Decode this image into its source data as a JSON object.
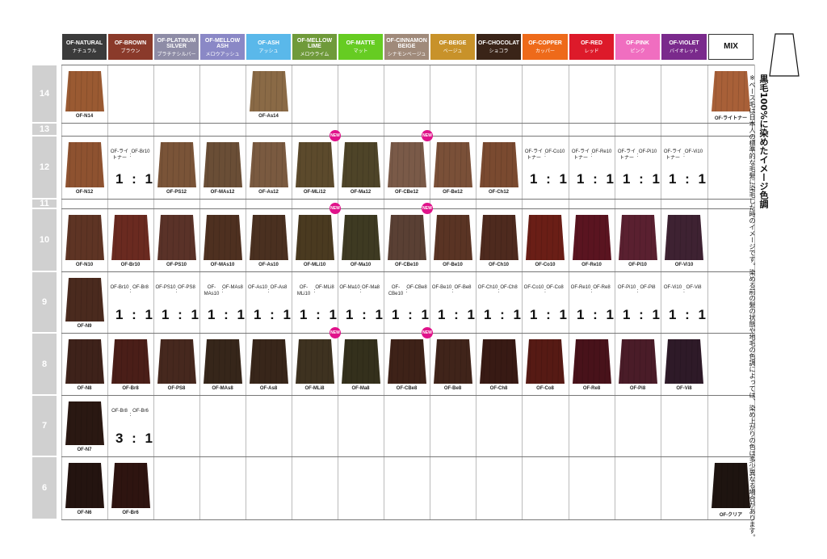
{
  "columns": [
    {
      "en": "OF-NATURAL",
      "jp": "ナチュラル",
      "color": "#3b3b3b"
    },
    {
      "en": "OF-BROWN",
      "jp": "ブラウン",
      "color": "#8a3a2a"
    },
    {
      "en": "OF-PLATINUM SILVER",
      "jp": "プラチナシルバー",
      "color": "#8e8ca6"
    },
    {
      "en": "OF-MELLOW ASH",
      "jp": "メロウアッシュ",
      "color": "#8a88c6"
    },
    {
      "en": "OF-ASH",
      "jp": "アッシュ",
      "color": "#5ab8ea"
    },
    {
      "en": "OF-MELLOW LIME",
      "jp": "メロウライム",
      "color": "#6f9a3a"
    },
    {
      "en": "OF-MATTE",
      "jp": "マット",
      "color": "#66cc22"
    },
    {
      "en": "OF-CINNAMON BEIGE",
      "jp": "シナモンベージュ",
      "color": "#a08a7a"
    },
    {
      "en": "OF-BEIGE",
      "jp": "ベージュ",
      "color": "#c8922a"
    },
    {
      "en": "OF-CHOCOLAT",
      "jp": "ショコラ",
      "color": "#3a2418"
    },
    {
      "en": "OF-COPPER",
      "jp": "カッパー",
      "color": "#ee6a1a"
    },
    {
      "en": "OF-RED",
      "jp": "レッド",
      "color": "#dd1a2a"
    },
    {
      "en": "OF-PINK",
      "jp": "ピンク",
      "color": "#f06ec0"
    },
    {
      "en": "OF-VIOLET",
      "jp": "バイオレット",
      "color": "#7a2a8c"
    },
    {
      "en": "MIX",
      "jp": "",
      "color": "#ffffff"
    }
  ],
  "levels": [
    "14",
    "13",
    "12",
    "11",
    "10",
    "9",
    "8",
    "7",
    "6"
  ],
  "new_badge": "NEW",
  "swatches": [
    {
      "row": 0,
      "col": 0,
      "name": "OF-N14",
      "color": "#9a5a32"
    },
    {
      "row": 0,
      "col": 4,
      "name": "OF-As14",
      "color": "#8a6a46"
    },
    {
      "row": 0,
      "col": 14,
      "name": "OF-ライトナー",
      "color": "#a86038"
    },
    {
      "row": 2,
      "col": 0,
      "name": "OF-N12",
      "color": "#8e5230"
    },
    {
      "row": 2,
      "col": 2,
      "name": "OF-PS12",
      "color": "#7a5438"
    },
    {
      "row": 2,
      "col": 3,
      "name": "OF-MAs12",
      "color": "#6a4e36"
    },
    {
      "row": 2,
      "col": 4,
      "name": "OF-As12",
      "color": "#7a5a40"
    },
    {
      "row": 2,
      "col": 5,
      "name": "OF-MLi12",
      "color": "#5c4a2c",
      "new": true
    },
    {
      "row": 2,
      "col": 6,
      "name": "OF-Ma12",
      "color": "#4e4428"
    },
    {
      "row": 2,
      "col": 7,
      "name": "OF-CBe12",
      "color": "#7a5a48",
      "new": true
    },
    {
      "row": 2,
      "col": 8,
      "name": "OF-Be12",
      "color": "#7a5038"
    },
    {
      "row": 2,
      "col": 9,
      "name": "OF-Ch12",
      "color": "#7a4a30"
    },
    {
      "row": 4,
      "col": 0,
      "name": "OF-N10",
      "color": "#5e3424"
    },
    {
      "row": 4,
      "col": 1,
      "name": "OF-Br10",
      "color": "#6a2a20"
    },
    {
      "row": 4,
      "col": 2,
      "name": "OF-PS10",
      "color": "#5a3228"
    },
    {
      "row": 4,
      "col": 3,
      "name": "OF-MAs10",
      "color": "#4e3020"
    },
    {
      "row": 4,
      "col": 4,
      "name": "OF-As10",
      "color": "#4a3020"
    },
    {
      "row": 4,
      "col": 5,
      "name": "OF-MLi10",
      "color": "#4a3a20",
      "new": true
    },
    {
      "row": 4,
      "col": 6,
      "name": "OF-Ma10",
      "color": "#3e3a22"
    },
    {
      "row": 4,
      "col": 7,
      "name": "OF-CBe10",
      "color": "#5a4034",
      "new": true
    },
    {
      "row": 4,
      "col": 8,
      "name": "OF-Be10",
      "color": "#5a3424"
    },
    {
      "row": 4,
      "col": 9,
      "name": "OF-Ch10",
      "color": "#4e2a1e"
    },
    {
      "row": 4,
      "col": 10,
      "name": "OF-Co10",
      "color": "#6a1e16"
    },
    {
      "row": 4,
      "col": 11,
      "name": "OF-Re10",
      "color": "#5a1420"
    },
    {
      "row": 4,
      "col": 12,
      "name": "OF-Pi10",
      "color": "#5a2030"
    },
    {
      "row": 4,
      "col": 13,
      "name": "OF-Vi10",
      "color": "#3e2232"
    },
    {
      "row": 5,
      "col": 0,
      "name": "OF-N9",
      "color": "#4a2a1e"
    },
    {
      "row": 6,
      "col": 0,
      "name": "OF-N8",
      "color": "#3e221a"
    },
    {
      "row": 6,
      "col": 1,
      "name": "OF-Br8",
      "color": "#4a1e18"
    },
    {
      "row": 6,
      "col": 2,
      "name": "OF-PS8",
      "color": "#46281e"
    },
    {
      "row": 6,
      "col": 3,
      "name": "OF-MAs8",
      "color": "#36261a"
    },
    {
      "row": 6,
      "col": 4,
      "name": "OF-As8",
      "color": "#38261a"
    },
    {
      "row": 6,
      "col": 5,
      "name": "OF-MLi8",
      "color": "#3e3220",
      "new": true
    },
    {
      "row": 6,
      "col": 6,
      "name": "OF-Ma8",
      "color": "#34301c"
    },
    {
      "row": 6,
      "col": 7,
      "name": "OF-CBe8",
      "color": "#3e2218",
      "new": true
    },
    {
      "row": 6,
      "col": 8,
      "name": "OF-Be8",
      "color": "#40241a"
    },
    {
      "row": 6,
      "col": 9,
      "name": "OF-Ch8",
      "color": "#381a14"
    },
    {
      "row": 6,
      "col": 10,
      "name": "OF-Co8",
      "color": "#561a14"
    },
    {
      "row": 6,
      "col": 11,
      "name": "OF-Re8",
      "color": "#48121a"
    },
    {
      "row": 6,
      "col": 12,
      "name": "OF-Pi8",
      "color": "#4a1c28"
    },
    {
      "row": 6,
      "col": 13,
      "name": "OF-Vi8",
      "color": "#2e1a28"
    },
    {
      "row": 7,
      "col": 0,
      "name": "OF-N7",
      "color": "#2a1812"
    },
    {
      "row": 8,
      "col": 0,
      "name": "OF-N6",
      "color": "#241410"
    },
    {
      "row": 8,
      "col": 1,
      "name": "OF-Br6",
      "color": "#2e1410"
    },
    {
      "row": 8,
      "col": 14,
      "name": "OF-クリア",
      "color": "#1e1410"
    }
  ],
  "mixes": [
    {
      "row": 2,
      "col": 1,
      "a": "OF-ライトナー",
      "b": "OF-Br10",
      "ratio": "1 : 1"
    },
    {
      "row": 2,
      "col": 10,
      "a": "OF-ライトナー",
      "b": "OF-Co10",
      "ratio": "1 : 1"
    },
    {
      "row": 2,
      "col": 11,
      "a": "OF-ライトナー",
      "b": "OF-Re10",
      "ratio": "1 : 1"
    },
    {
      "row": 2,
      "col": 12,
      "a": "OF-ライトナー",
      "b": "OF-Pi10",
      "ratio": "1 : 1"
    },
    {
      "row": 2,
      "col": 13,
      "a": "OF-ライトナー",
      "b": "OF-Vi10",
      "ratio": "1 : 1"
    },
    {
      "row": 5,
      "col": 1,
      "a": "OF-Br10",
      "b": "OF-Br8",
      "ratio": "1 : 1"
    },
    {
      "row": 5,
      "col": 2,
      "a": "OF-PS10",
      "b": "OF-PS8",
      "ratio": "1 : 1"
    },
    {
      "row": 5,
      "col": 3,
      "a": "OF-MAs10",
      "b": "OF-MAs8",
      "ratio": "1 : 1"
    },
    {
      "row": 5,
      "col": 4,
      "a": "OF-As10",
      "b": "OF-As8",
      "ratio": "1 : 1"
    },
    {
      "row": 5,
      "col": 5,
      "a": "OF-MLi10",
      "b": "OF-MLi8",
      "ratio": "1 : 1"
    },
    {
      "row": 5,
      "col": 6,
      "a": "OF-Ma10",
      "b": "OF-Ma8",
      "ratio": "1 : 1"
    },
    {
      "row": 5,
      "col": 7,
      "a": "OF-CBe10",
      "b": "OF-CBe8",
      "ratio": "1 : 1"
    },
    {
      "row": 5,
      "col": 8,
      "a": "OF-Be10",
      "b": "OF-Be8",
      "ratio": "1 : 1"
    },
    {
      "row": 5,
      "col": 9,
      "a": "OF-Ch10",
      "b": "OF-Ch8",
      "ratio": "1 : 1"
    },
    {
      "row": 5,
      "col": 10,
      "a": "OF-Co10",
      "b": "OF-Co8",
      "ratio": "1 : 1"
    },
    {
      "row": 5,
      "col": 11,
      "a": "OF-Re10",
      "b": "OF-Re8",
      "ratio": "1 : 1"
    },
    {
      "row": 5,
      "col": 12,
      "a": "OF-Pi10",
      "b": "OF-Pi8",
      "ratio": "1 : 1"
    },
    {
      "row": 5,
      "col": 13,
      "a": "OF-Vi10",
      "b": "OF-Vi8",
      "ratio": "1 : 1"
    },
    {
      "row": 7,
      "col": 1,
      "a": "OF-Br8",
      "b": "OF-Br6",
      "ratio": "3 : 1"
    }
  ],
  "note": {
    "title": "黒毛100%に染めたイメージ色調",
    "body": "※ベース毛は日本人の標準的な毛髪に染毛した時のイメージです。染める前の髪の状態や地毛の色調によっては、染め上がりの色は多少異なる場合があります。"
  }
}
